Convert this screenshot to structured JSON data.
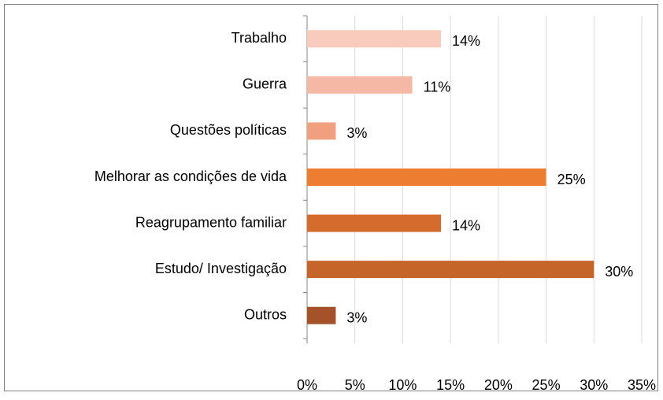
{
  "chart_data": {
    "type": "bar",
    "orientation": "horizontal",
    "categories": [
      "Trabalho",
      "Guerra",
      "Questões políticas",
      "Melhorar as condições de vida",
      "Reagrupamento familiar",
      "Estudo/ Investigação",
      "Outros"
    ],
    "values": [
      14,
      11,
      3,
      25,
      14,
      30,
      3
    ],
    "value_labels": [
      "14%",
      "11%",
      "3%",
      "25%",
      "14%",
      "30%",
      "3%"
    ],
    "colors": [
      "#f8cbbd",
      "#f4b8a5",
      "#f0a07e",
      "#ed7d31",
      "#d56b2c",
      "#c5652a",
      "#a5522a"
    ],
    "xlim": [
      0,
      35
    ],
    "xticks": [
      {
        "value": 0,
        "label": "0%"
      },
      {
        "value": 5,
        "label": "5%"
      },
      {
        "value": 10,
        "label": "10%"
      },
      {
        "value": 15,
        "label": "15%"
      },
      {
        "value": 20,
        "label": "20%"
      },
      {
        "value": 25,
        "label": "25%"
      },
      {
        "value": 30,
        "label": "30%"
      },
      {
        "value": 35,
        "label": "35%"
      }
    ],
    "grid": true
  }
}
